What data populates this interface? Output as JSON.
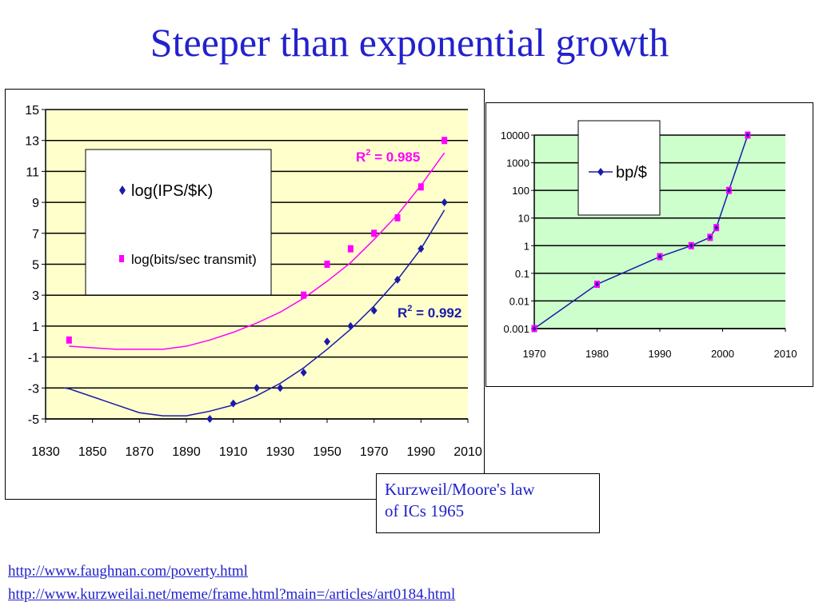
{
  "slide": {
    "title": "Steeper than exponential growth",
    "caption_line1": "Kurzweil/Moore's law",
    "caption_line2": "of ICs 1965",
    "link1": "http://www.faughnan.com/poverty.html",
    "link2": "http://www.kurzweilai.net/meme/frame.html?main=/articles/art0184.html"
  },
  "colors": {
    "title": "#2222cc",
    "series_blue": "#1a1aa8",
    "series_magenta": "#ff00ff",
    "left_plot_bg": "#ffffcc",
    "right_plot_bg": "#ccffcc"
  },
  "chart_data": [
    {
      "type": "scatter",
      "title": "",
      "xlabel": "",
      "ylabel": "",
      "xlim": [
        1830,
        2010
      ],
      "ylim": [
        -5,
        15
      ],
      "x_ticks": [
        "1830",
        "1850",
        "1870",
        "1890",
        "1910",
        "1930",
        "1950",
        "1970",
        "1990",
        "2010"
      ],
      "y_ticks": [
        "15",
        "13",
        "11",
        "9",
        "7",
        "5",
        "3",
        "1",
        "-1",
        "-3",
        "-5"
      ],
      "grid": true,
      "legend_position": "top-left",
      "series": [
        {
          "name": "log(IPS/$K)",
          "marker": "diamond",
          "color": "#1a1aa8",
          "x": [
            1900,
            1910,
            1920,
            1930,
            1940,
            1950,
            1960,
            1970,
            1980,
            1990,
            2000
          ],
          "y": [
            -5,
            -4,
            -3,
            -3,
            -2,
            0,
            1,
            2,
            4,
            6,
            9
          ],
          "trendline": {
            "x": [
              1838,
              1840,
              1870,
              1880,
              1890,
              1900,
              1910,
              1920,
              1930,
              1940,
              1950,
              1960,
              1970,
              1980,
              1990,
              2000
            ],
            "y": [
              -3,
              -3.05,
              -4.6,
              -4.8,
              -4.8,
              -4.5,
              -4.1,
              -3.5,
              -2.7,
              -1.7,
              -0.5,
              0.8,
              2.3,
              4.0,
              6.0,
              8.5
            ]
          },
          "r_squared_label": "0.992"
        },
        {
          "name": "log(bits/sec transmit)",
          "marker": "square",
          "color": "#ff00ff",
          "x": [
            1840,
            1940,
            1950,
            1960,
            1970,
            1980,
            1990,
            2000
          ],
          "y": [
            0.1,
            3,
            5,
            6,
            7,
            8,
            10,
            13
          ],
          "trendline": {
            "x": [
              1840,
              1850,
              1860,
              1870,
              1880,
              1890,
              1900,
              1910,
              1920,
              1930,
              1940,
              1950,
              1960,
              1970,
              1980,
              1990,
              2000
            ],
            "y": [
              -0.3,
              -0.4,
              -0.5,
              -0.5,
              -0.5,
              -0.3,
              0.1,
              0.6,
              1.2,
              1.9,
              2.8,
              3.9,
              5.1,
              6.6,
              8.2,
              10.1,
              12.2
            ]
          },
          "r_squared_label": "0.985"
        }
      ]
    },
    {
      "type": "line",
      "title": "",
      "xlabel": "",
      "ylabel": "",
      "y_scale": "log",
      "xlim": [
        1970,
        2010
      ],
      "ylim": [
        0.001,
        10000
      ],
      "x_ticks": [
        "1970",
        "1980",
        "1990",
        "2000",
        "2010"
      ],
      "y_ticks": [
        "10000",
        "1000",
        "100",
        "10",
        "1",
        "0.1",
        "0.01",
        "0.001"
      ],
      "grid": true,
      "legend_position": "top-left",
      "series": [
        {
          "name": "bp/$",
          "color": "#1a1aa8",
          "marker_color": "#ff00ff",
          "x": [
            1970,
            1980,
            1990,
            1995,
            1998,
            1999,
            2001,
            2004
          ],
          "y": [
            0.001,
            0.04,
            0.4,
            1,
            2,
            4.5,
            100,
            10000
          ]
        }
      ]
    }
  ]
}
